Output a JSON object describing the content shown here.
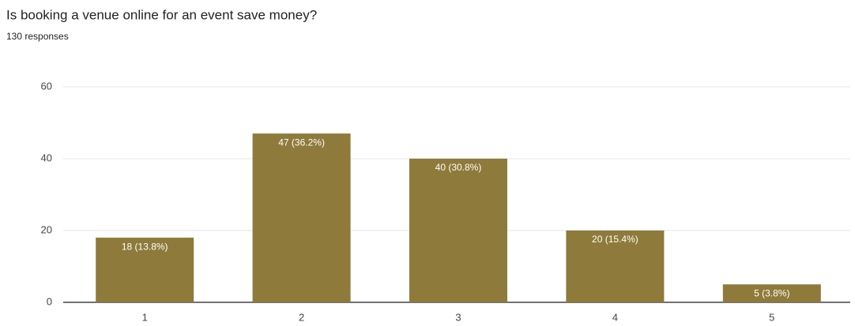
{
  "chart_data": {
    "type": "bar",
    "title": "Is booking a venue online for an event save money?",
    "subtitle": "130 responses",
    "categories": [
      "1",
      "2",
      "3",
      "4",
      "5"
    ],
    "values": [
      18,
      47,
      40,
      20,
      5
    ],
    "value_labels": [
      "18 (13.8%)",
      "47 (36.2%)",
      "40 (30.8%)",
      "20 (15.4%)",
      "5 (3.8%)"
    ],
    "color": "#8e7a3a",
    "ylim": [
      0,
      60
    ],
    "yticks": [
      0,
      20,
      40,
      60
    ],
    "grid": true
  }
}
